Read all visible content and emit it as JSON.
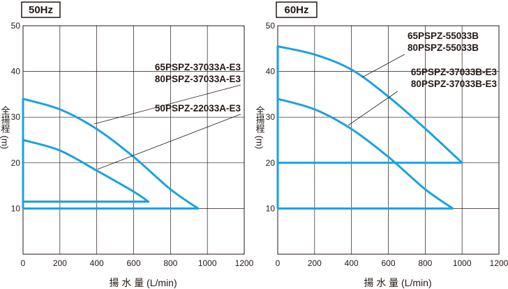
{
  "chart_data": [
    {
      "type": "line",
      "title": "50Hz",
      "xlabel": "揚 水 量 (L/min)",
      "ylabel": "全揚程 (m)",
      "xlim": [
        0,
        1200
      ],
      "ylim": [
        0,
        50
      ],
      "grid": true,
      "x_ticks": [
        "0",
        "200",
        "400",
        "600",
        "800",
        "1000",
        "1200"
      ],
      "y_ticks": [
        "10",
        "20",
        "30",
        "40",
        "50"
      ],
      "series": [
        {
          "name": "65PSPZ-37033A-E3 / 80PSPZ-37033A-E3",
          "points": [
            [
              0,
              10
            ],
            [
              0,
              34
            ],
            [
              200,
              31.7
            ],
            [
              400,
              27.4
            ],
            [
              600,
              21.3
            ],
            [
              800,
              14.2
            ],
            [
              950,
              10
            ],
            [
              0,
              10
            ]
          ]
        },
        {
          "name": "50PSPZ-22033A-E3",
          "points": [
            [
              0,
              11.5
            ],
            [
              0,
              25
            ],
            [
              200,
              22.7
            ],
            [
              400,
              18.3
            ],
            [
              600,
              13.7
            ],
            [
              680,
              11.5
            ],
            [
              0,
              11.5
            ]
          ]
        }
      ],
      "annotations": [
        {
          "lines": [
            "65PSPZ-37033A-E3",
            "80PSPZ-37033A-E3"
          ],
          "series": 0
        },
        {
          "lines": [
            "50PSPZ-22033A-E3"
          ],
          "series": 1
        }
      ]
    },
    {
      "type": "line",
      "title": "60Hz",
      "xlabel": "揚 水 量 (L/min)",
      "ylabel": "全揚程 (m)",
      "xlim": [
        0,
        1200
      ],
      "ylim": [
        0,
        50
      ],
      "grid": true,
      "x_ticks": [
        "0",
        "200",
        "400",
        "600",
        "800",
        "1000",
        "1200"
      ],
      "y_ticks": [
        "10",
        "20",
        "30",
        "40",
        "50"
      ],
      "series": [
        {
          "name": "65PSPZ-55033B / 80PSPZ-55033B",
          "points": [
            [
              0,
              20
            ],
            [
              0,
              45.5
            ],
            [
              200,
              43.7
            ],
            [
              400,
              40.4
            ],
            [
              600,
              34.5
            ],
            [
              800,
              27.5
            ],
            [
              1000,
              20
            ],
            [
              0,
              20
            ]
          ]
        },
        {
          "name": "65PSPZ-37033B-E3 / 80PSPZ-37033B-E3",
          "points": [
            [
              0,
              10
            ],
            [
              0,
              34
            ],
            [
              200,
              31.7
            ],
            [
              400,
              27.4
            ],
            [
              600,
              21.3
            ],
            [
              800,
              14.2
            ],
            [
              950,
              10
            ],
            [
              0,
              10
            ]
          ]
        }
      ],
      "annotations": [
        {
          "lines": [
            "65PSPZ-55033B",
            "80PSPZ-55033B"
          ],
          "series": 0
        },
        {
          "lines": [
            "65PSPZ-37033B-E3",
            "80PSPZ-37033B-E3"
          ],
          "series": 1
        }
      ]
    }
  ],
  "style": {
    "curve_color": "#1aa2dc",
    "grid_color": "#231815",
    "text_color": "#231815"
  }
}
